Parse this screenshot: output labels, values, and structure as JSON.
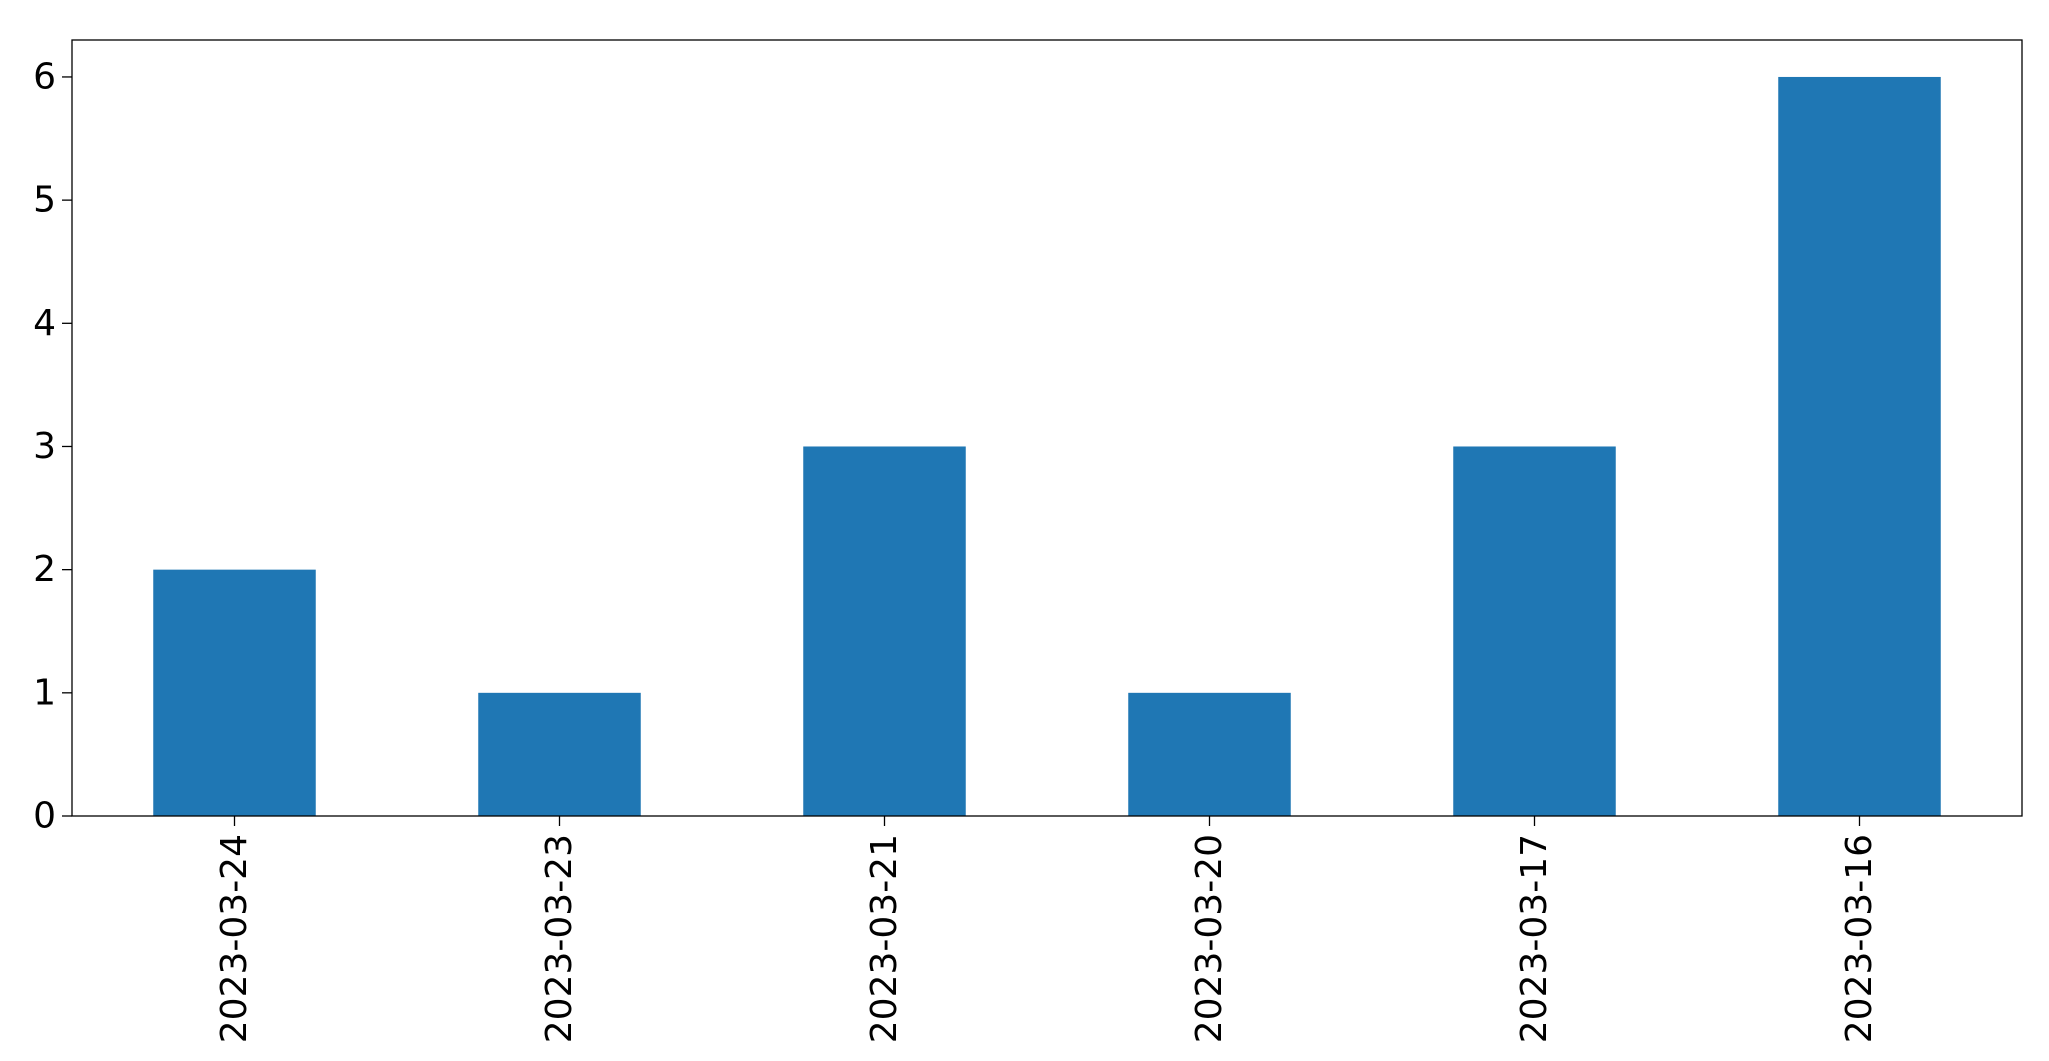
{
  "chart_data": {
    "type": "bar",
    "categories": [
      "2023-03-24",
      "2023-03-23",
      "2023-03-21",
      "2023-03-20",
      "2023-03-17",
      "2023-03-16"
    ],
    "values": [
      2,
      1,
      3,
      1,
      3,
      6
    ],
    "title": "",
    "xlabel": "",
    "ylabel": "",
    "ylim": [
      0,
      6.3
    ],
    "yticks": [
      0,
      1,
      2,
      3,
      4,
      5,
      6
    ],
    "grid": false,
    "legend": "none",
    "bar_color": "#1f77b4"
  }
}
